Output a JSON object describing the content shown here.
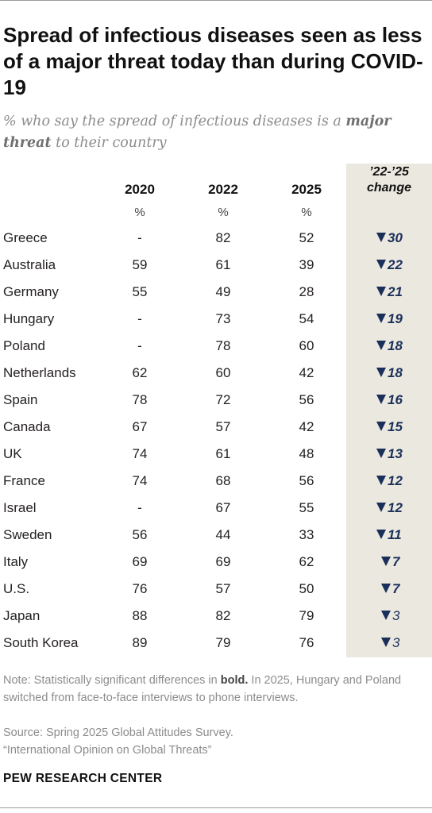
{
  "title": "Spread of infectious diseases seen as less of a major threat today than during COVID-19",
  "subtitle": {
    "part1": "% who say the spread of infectious diseases is a ",
    "emph": "major threat",
    "part2": " to their country"
  },
  "chart_data": {
    "type": "table",
    "columns": [
      "2020",
      "2022",
      "2025"
    ],
    "unit_row": [
      "%",
      "%",
      "%"
    ],
    "change_header": [
      "’22-’25",
      "change"
    ],
    "rows": [
      {
        "country": "Greece",
        "y2020": "-",
        "y2022": "82",
        "y2025": "52",
        "change": "30",
        "significant": true
      },
      {
        "country": "Australia",
        "y2020": "59",
        "y2022": "61",
        "y2025": "39",
        "change": "22",
        "significant": true
      },
      {
        "country": "Germany",
        "y2020": "55",
        "y2022": "49",
        "y2025": "28",
        "change": "21",
        "significant": true
      },
      {
        "country": "Hungary",
        "y2020": "-",
        "y2022": "73",
        "y2025": "54",
        "change": "19",
        "significant": true
      },
      {
        "country": "Poland",
        "y2020": "-",
        "y2022": "78",
        "y2025": "60",
        "change": "18",
        "significant": true
      },
      {
        "country": "Netherlands",
        "y2020": "62",
        "y2022": "60",
        "y2025": "42",
        "change": "18",
        "significant": true
      },
      {
        "country": "Spain",
        "y2020": "78",
        "y2022": "72",
        "y2025": "56",
        "change": "16",
        "significant": true
      },
      {
        "country": "Canada",
        "y2020": "67",
        "y2022": "57",
        "y2025": "42",
        "change": "15",
        "significant": true
      },
      {
        "country": "UK",
        "y2020": "74",
        "y2022": "61",
        "y2025": "48",
        "change": "13",
        "significant": true
      },
      {
        "country": "France",
        "y2020": "74",
        "y2022": "68",
        "y2025": "56",
        "change": "12",
        "significant": true
      },
      {
        "country": "Israel",
        "y2020": "-",
        "y2022": "67",
        "y2025": "55",
        "change": "12",
        "significant": true
      },
      {
        "country": "Sweden",
        "y2020": "56",
        "y2022": "44",
        "y2025": "33",
        "change": "11",
        "significant": true
      },
      {
        "country": "Italy",
        "y2020": "69",
        "y2022": "69",
        "y2025": "62",
        "change": "7",
        "significant": true
      },
      {
        "country": "U.S.",
        "y2020": "76",
        "y2022": "57",
        "y2025": "50",
        "change": "7",
        "significant": true
      },
      {
        "country": "Japan",
        "y2020": "88",
        "y2022": "82",
        "y2025": "79",
        "change": "3",
        "significant": false
      },
      {
        "country": "South Korea",
        "y2020": "89",
        "y2022": "79",
        "y2025": "76",
        "change": "3",
        "significant": false
      }
    ]
  },
  "colors": {
    "change_bg": "#ebe9df",
    "arrow": "#1b2f5b"
  },
  "note": {
    "part1": "Note: Statistically significant differences in ",
    "bold": "bold.",
    "part2": " In 2025, Hungary and Poland switched from face-to-face interviews to phone interviews."
  },
  "source": "Source: Spring 2025 Global Attitudes Survey.",
  "report": "“International Opinion on Global Threats”",
  "brand": "PEW RESEARCH CENTER"
}
